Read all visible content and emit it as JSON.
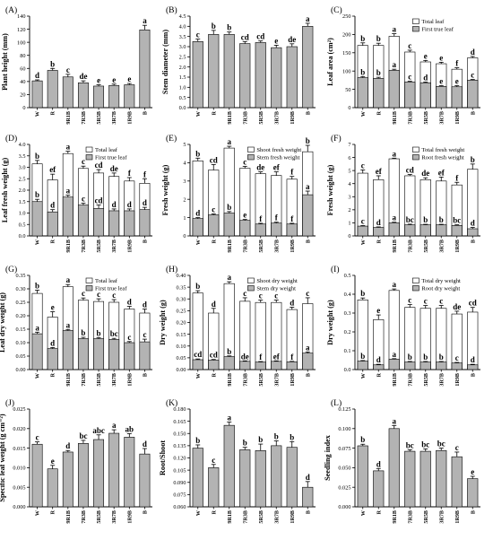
{
  "chart_data": [
    {
      "panel": "(A)",
      "type": "bar",
      "categories": [
        "W",
        "R",
        "9R1B",
        "7R3B",
        "5R5B",
        "3R7B",
        "1R9B",
        "B"
      ],
      "ylabel": "Plant height (mm)",
      "ylim": [
        0,
        140
      ],
      "yticks": [
        0,
        20,
        40,
        60,
        80,
        100,
        120,
        140
      ],
      "tick_decimals": 0,
      "series": [
        {
          "fill": "gray",
          "values": [
            41,
            57,
            47,
            38,
            33,
            34,
            35,
            119
          ],
          "errors": [
            1.5,
            3,
            4,
            3,
            2,
            2,
            2,
            7
          ],
          "letters": [
            "d",
            "b",
            "c",
            "de",
            "e",
            "e",
            "e",
            "a"
          ]
        }
      ]
    },
    {
      "panel": "(B)",
      "type": "bar",
      "categories": [
        "W",
        "R",
        "9R1B",
        "7R3B",
        "5R5B",
        "3R7B",
        "1R9B",
        "B"
      ],
      "ylabel": "Stem diameter (mm)",
      "ylim": [
        0,
        4.5
      ],
      "yticks": [
        0,
        0.5,
        1.0,
        1.5,
        2.0,
        2.5,
        3.0,
        3.5,
        4.0,
        4.5
      ],
      "tick_decimals": 1,
      "series": [
        {
          "fill": "gray",
          "values": [
            3.25,
            3.6,
            3.6,
            3.15,
            3.2,
            2.95,
            3.0,
            4.0
          ],
          "errors": [
            0.12,
            0.2,
            0.12,
            0.1,
            0.08,
            0.12,
            0.14,
            0.15
          ],
          "letters": [
            "c",
            "b",
            "b",
            "cd",
            "cd",
            "e",
            "de",
            "a"
          ]
        }
      ]
    },
    {
      "panel": "(C)",
      "type": "bar",
      "categories": [
        "W",
        "R",
        "9R1B",
        "7R3B",
        "5R5B",
        "3R7B",
        "1R9B",
        "B"
      ],
      "ylabel": "Leaf area (cm²)",
      "ylim": [
        0,
        250
      ],
      "yticks": [
        0,
        50,
        100,
        150,
        200,
        250
      ],
      "tick_decimals": 0,
      "legend": [
        "Total leaf",
        "First true leaf"
      ],
      "series": [
        {
          "name": "Total leaf",
          "fill": "white",
          "values": [
            170,
            170,
            195,
            152,
            125,
            120,
            105,
            136
          ],
          "errors": [
            7,
            6,
            7,
            5,
            4,
            4,
            4,
            4
          ],
          "letters": [
            "b",
            "b",
            "a",
            "c",
            "e",
            "e",
            "f",
            "d"
          ]
        },
        {
          "name": "First true leaf",
          "fill": "gray",
          "values": [
            82,
            80,
            102,
            70,
            68,
            58,
            57,
            75
          ],
          "errors": [
            3,
            3,
            3,
            2,
            2,
            2,
            3,
            2
          ],
          "letters": [
            "b",
            "b",
            "a",
            "c",
            "d",
            "e",
            "e",
            "c"
          ]
        }
      ]
    },
    {
      "panel": "(D)",
      "type": "bar",
      "categories": [
        "W",
        "R",
        "9R1B",
        "7R3B",
        "5R5B",
        "3R7B",
        "1R9B",
        "B"
      ],
      "ylabel": "Leaf fresh weight (g)",
      "ylim": [
        0,
        4.0
      ],
      "yticks": [
        0,
        0.5,
        1.0,
        1.5,
        2.0,
        2.5,
        3.0,
        3.5,
        4.0
      ],
      "tick_decimals": 1,
      "legend": [
        "Total leaf",
        "First true leaf"
      ],
      "series": [
        {
          "name": "Total leaf",
          "fill": "white",
          "values": [
            3.15,
            2.45,
            3.6,
            2.95,
            2.75,
            2.6,
            2.4,
            2.3
          ],
          "errors": [
            0.15,
            0.25,
            0.1,
            0.1,
            0.15,
            0.15,
            0.15,
            0.2
          ],
          "letters": [
            "b",
            "ef",
            "a",
            "c",
            "cd",
            "de",
            "f",
            "f"
          ]
        },
        {
          "name": "First true leaf",
          "fill": "gray",
          "values": [
            1.5,
            1.05,
            1.7,
            1.35,
            1.2,
            1.1,
            1.1,
            1.15
          ],
          "errors": [
            0.1,
            0.1,
            0.08,
            0.08,
            0.15,
            0.08,
            0.08,
            0.1
          ],
          "letters": [
            "b",
            "d",
            "a",
            "c",
            "cd",
            "d",
            "d",
            "d"
          ]
        }
      ]
    },
    {
      "panel": "(E)",
      "type": "bar",
      "categories": [
        "W",
        "R",
        "9R1B",
        "7R3B",
        "5R5B",
        "3R7B",
        "1R9B",
        "B"
      ],
      "ylabel": "Fresh weight (g)",
      "ylim": [
        0,
        5
      ],
      "yticks": [
        0,
        1,
        2,
        3,
        4,
        5
      ],
      "tick_decimals": 0,
      "legend": [
        "Shoot fresh weight",
        "Stem fresh weight"
      ],
      "series": [
        {
          "name": "Shoot fresh weight",
          "fill": "white",
          "values": [
            4.1,
            3.6,
            4.8,
            3.7,
            3.4,
            3.3,
            3.1,
            4.6
          ],
          "errors": [
            0.15,
            0.3,
            0.1,
            0.1,
            0.1,
            0.2,
            0.15,
            0.35
          ],
          "letters": [
            "b",
            "cd",
            "a",
            "c",
            "de",
            "ef",
            "f",
            "b"
          ]
        },
        {
          "name": "Stem fresh weight",
          "fill": "gray",
          "values": [
            0.95,
            1.15,
            1.25,
            0.85,
            0.65,
            0.7,
            0.65,
            2.25
          ],
          "errors": [
            0.05,
            0.05,
            0.08,
            0.05,
            0.04,
            0.05,
            0.04,
            0.2
          ],
          "letters": [
            "d",
            "c",
            "b",
            "e",
            "f",
            "f",
            "f",
            "a"
          ]
        }
      ]
    },
    {
      "panel": "(F)",
      "type": "bar",
      "categories": [
        "W",
        "R",
        "9R1B",
        "7R3B",
        "5R5B",
        "3R7B",
        "1R9B",
        "B"
      ],
      "ylabel": "Fresh weight (g)",
      "ylim": [
        0,
        7
      ],
      "yticks": [
        0,
        1,
        2,
        3,
        4,
        5,
        6,
        7
      ],
      "tick_decimals": 0,
      "legend": [
        "Total fresh weight",
        "Root fresh weight"
      ],
      "series": [
        {
          "name": "Total fresh weight",
          "fill": "white",
          "values": [
            4.8,
            4.3,
            5.9,
            4.6,
            4.3,
            4.2,
            3.9,
            5.1
          ],
          "errors": [
            0.25,
            0.3,
            0.05,
            0.1,
            0.15,
            0.3,
            0.2,
            0.4
          ],
          "letters": [
            "c",
            "ef",
            "a",
            "cd",
            "de",
            "ef",
            "f",
            "b"
          ]
        },
        {
          "name": "Root fresh weight",
          "fill": "gray",
          "values": [
            0.75,
            0.65,
            1.0,
            0.85,
            0.85,
            0.85,
            0.8,
            0.55
          ],
          "errors": [
            0.04,
            0.04,
            0.05,
            0.05,
            0.04,
            0.04,
            0.05,
            0.1
          ],
          "letters": [
            "c",
            "d",
            "a",
            "bc",
            "b",
            "b",
            "bc",
            "d"
          ]
        }
      ]
    },
    {
      "panel": "(G)",
      "type": "bar",
      "categories": [
        "W",
        "R",
        "9R1B",
        "7R3B",
        "5R5B",
        "3R7B",
        "1R9B",
        "B"
      ],
      "ylabel": "Leaf dry weight (g)",
      "ylim": [
        0,
        0.35
      ],
      "yticks": [
        0,
        0.05,
        0.1,
        0.15,
        0.2,
        0.25,
        0.3,
        0.35
      ],
      "tick_decimals": 2,
      "legend": [
        "Total leaf",
        "First true leaf"
      ],
      "series": [
        {
          "name": "Total leaf",
          "fill": "white",
          "values": [
            0.283,
            0.195,
            0.308,
            0.258,
            0.253,
            0.25,
            0.225,
            0.21
          ],
          "errors": [
            0.012,
            0.02,
            0.008,
            0.008,
            0.01,
            0.01,
            0.01,
            0.015
          ],
          "letters": [
            "b",
            "e",
            "a",
            "c",
            "c",
            "c",
            "d",
            "d"
          ]
        },
        {
          "name": "First true leaf",
          "fill": "gray",
          "values": [
            0.133,
            0.078,
            0.145,
            0.115,
            0.115,
            0.112,
            0.1,
            0.103
          ],
          "errors": [
            0.006,
            0.004,
            0.004,
            0.005,
            0.004,
            0.004,
            0.004,
            0.01
          ],
          "letters": [
            "a",
            "d",
            "a",
            "b",
            "b",
            "bc",
            "c",
            "c"
          ]
        }
      ]
    },
    {
      "panel": "(H)",
      "type": "bar",
      "categories": [
        "W",
        "R",
        "9R1B",
        "7R3B",
        "5R5B",
        "3R7B",
        "1R9B",
        "B"
      ],
      "ylabel": "Dry weight (g)",
      "ylim": [
        0,
        0.4
      ],
      "yticks": [
        0,
        0.05,
        0.1,
        0.15,
        0.2,
        0.25,
        0.3,
        0.35,
        0.4
      ],
      "tick_decimals": 2,
      "legend": [
        "Shoot dry weight",
        "Stem dry weight"
      ],
      "series": [
        {
          "name": "Shoot dry weight",
          "fill": "white",
          "values": [
            0.325,
            0.24,
            0.365,
            0.29,
            0.285,
            0.285,
            0.255,
            0.28
          ],
          "errors": [
            0.01,
            0.02,
            0.008,
            0.015,
            0.01,
            0.01,
            0.01,
            0.025
          ],
          "letters": [
            "b",
            "d",
            "a",
            "c",
            "c",
            "c",
            "d",
            "c"
          ]
        },
        {
          "name": "Stem dry weight",
          "fill": "gray",
          "values": [
            0.042,
            0.04,
            0.055,
            0.035,
            0.032,
            0.035,
            0.033,
            0.07
          ],
          "errors": [
            0.003,
            0.003,
            0.003,
            0.002,
            0.002,
            0.002,
            0.002,
            0.005
          ],
          "letters": [
            "cd",
            "cd",
            "b",
            "de",
            "f",
            "ef",
            "f",
            "a"
          ]
        }
      ]
    },
    {
      "panel": "(I)",
      "type": "bar",
      "categories": [
        "W",
        "R",
        "9R1B",
        "7R3B",
        "5R5B",
        "3R7B",
        "1R9B",
        "B"
      ],
      "ylabel": "Dry weight (g)",
      "ylim": [
        0,
        0.5
      ],
      "yticks": [
        0,
        0.1,
        0.2,
        0.3,
        0.4,
        0.5
      ],
      "tick_decimals": 1,
      "legend": [
        "Total dry weight",
        "Root dry weight"
      ],
      "series": [
        {
          "name": "Total dry weight",
          "fill": "white",
          "values": [
            0.37,
            0.265,
            0.42,
            0.33,
            0.325,
            0.325,
            0.295,
            0.305
          ],
          "errors": [
            0.01,
            0.025,
            0.008,
            0.015,
            0.015,
            0.015,
            0.015,
            0.025
          ],
          "letters": [
            "b",
            "e",
            "a",
            "c",
            "c",
            "c",
            "de",
            "cd"
          ]
        },
        {
          "name": "Root dry weight",
          "fill": "gray",
          "values": [
            0.045,
            0.025,
            0.055,
            0.04,
            0.04,
            0.04,
            0.035,
            0.025
          ],
          "errors": [
            0.003,
            0.003,
            0.003,
            0.003,
            0.003,
            0.003,
            0.003,
            0.003
          ],
          "letters": [
            "b",
            "d",
            "a",
            "b",
            "b",
            "b",
            "c",
            "d"
          ]
        }
      ]
    },
    {
      "panel": "(J)",
      "type": "bar",
      "categories": [
        "W",
        "R",
        "9R1B",
        "7R3B",
        "5R5B",
        "3R7B",
        "1R9B",
        "B"
      ],
      "ylabel": "Specific leaf weight (g cm⁻²)",
      "ylim": [
        0,
        0.025
      ],
      "yticks": [
        0,
        0.005,
        0.01,
        0.015,
        0.02,
        0.025
      ],
      "tick_decimals": 3,
      "series": [
        {
          "fill": "gray",
          "values": [
            0.016,
            0.0097,
            0.014,
            0.0162,
            0.0172,
            0.0188,
            0.0178,
            0.0135
          ],
          "errors": [
            0.0006,
            0.0009,
            0.0004,
            0.0008,
            0.0012,
            0.0009,
            0.0009,
            0.0014
          ],
          "letters": [
            "c",
            "e",
            "d",
            "bc",
            "abc",
            "a",
            "ab",
            "d"
          ]
        }
      ]
    },
    {
      "panel": "(K)",
      "type": "bar",
      "categories": [
        "W",
        "R",
        "9R1B",
        "7R3B",
        "5R5B",
        "3R7B",
        "1R9B",
        "B"
      ],
      "ylabel": "Root/Shoot",
      "ylim": [
        0.06,
        0.18
      ],
      "yticks": [
        0.06,
        0.075,
        0.09,
        0.105,
        0.12,
        0.135,
        0.15,
        0.165,
        0.18
      ],
      "tick_decimals": 3,
      "series": [
        {
          "fill": "gray",
          "values": [
            0.132,
            0.108,
            0.16,
            0.13,
            0.129,
            0.135,
            0.133,
            0.084
          ],
          "errors": [
            0.004,
            0.004,
            0.004,
            0.003,
            0.008,
            0.006,
            0.007,
            0.007
          ],
          "letters": [
            "b",
            "c",
            "a",
            "b",
            "b",
            "b",
            "b",
            "d"
          ]
        }
      ]
    },
    {
      "panel": "(L)",
      "type": "bar",
      "categories": [
        "W",
        "R",
        "9R1B",
        "7R3B",
        "5R5B",
        "3R7B",
        "1R9B",
        "B"
      ],
      "ylabel": "Seedling index",
      "ylim": [
        0,
        0.125
      ],
      "yticks": [
        0,
        0.025,
        0.05,
        0.075,
        0.1,
        0.125
      ],
      "tick_decimals": 3,
      "series": [
        {
          "fill": "gray",
          "values": [
            0.078,
            0.046,
            0.1,
            0.071,
            0.071,
            0.072,
            0.064,
            0.036
          ],
          "errors": [
            0.002,
            0.003,
            0.004,
            0.002,
            0.003,
            0.003,
            0.006,
            0.003
          ],
          "letters": [
            "b",
            "d",
            "a",
            "bc",
            "bc",
            "bc",
            "c",
            "e"
          ]
        }
      ]
    }
  ]
}
